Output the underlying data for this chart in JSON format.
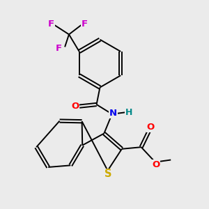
{
  "background_color": "#ebebeb",
  "bond_color": "#000000",
  "atom_colors": {
    "F": "#cc00cc",
    "O": "#ff0000",
    "N": "#0000ee",
    "H": "#008888",
    "S": "#ccaa00",
    "C": "#000000"
  },
  "bond_lw": 1.4,
  "dbo": 0.055,
  "fs": 9.5
}
